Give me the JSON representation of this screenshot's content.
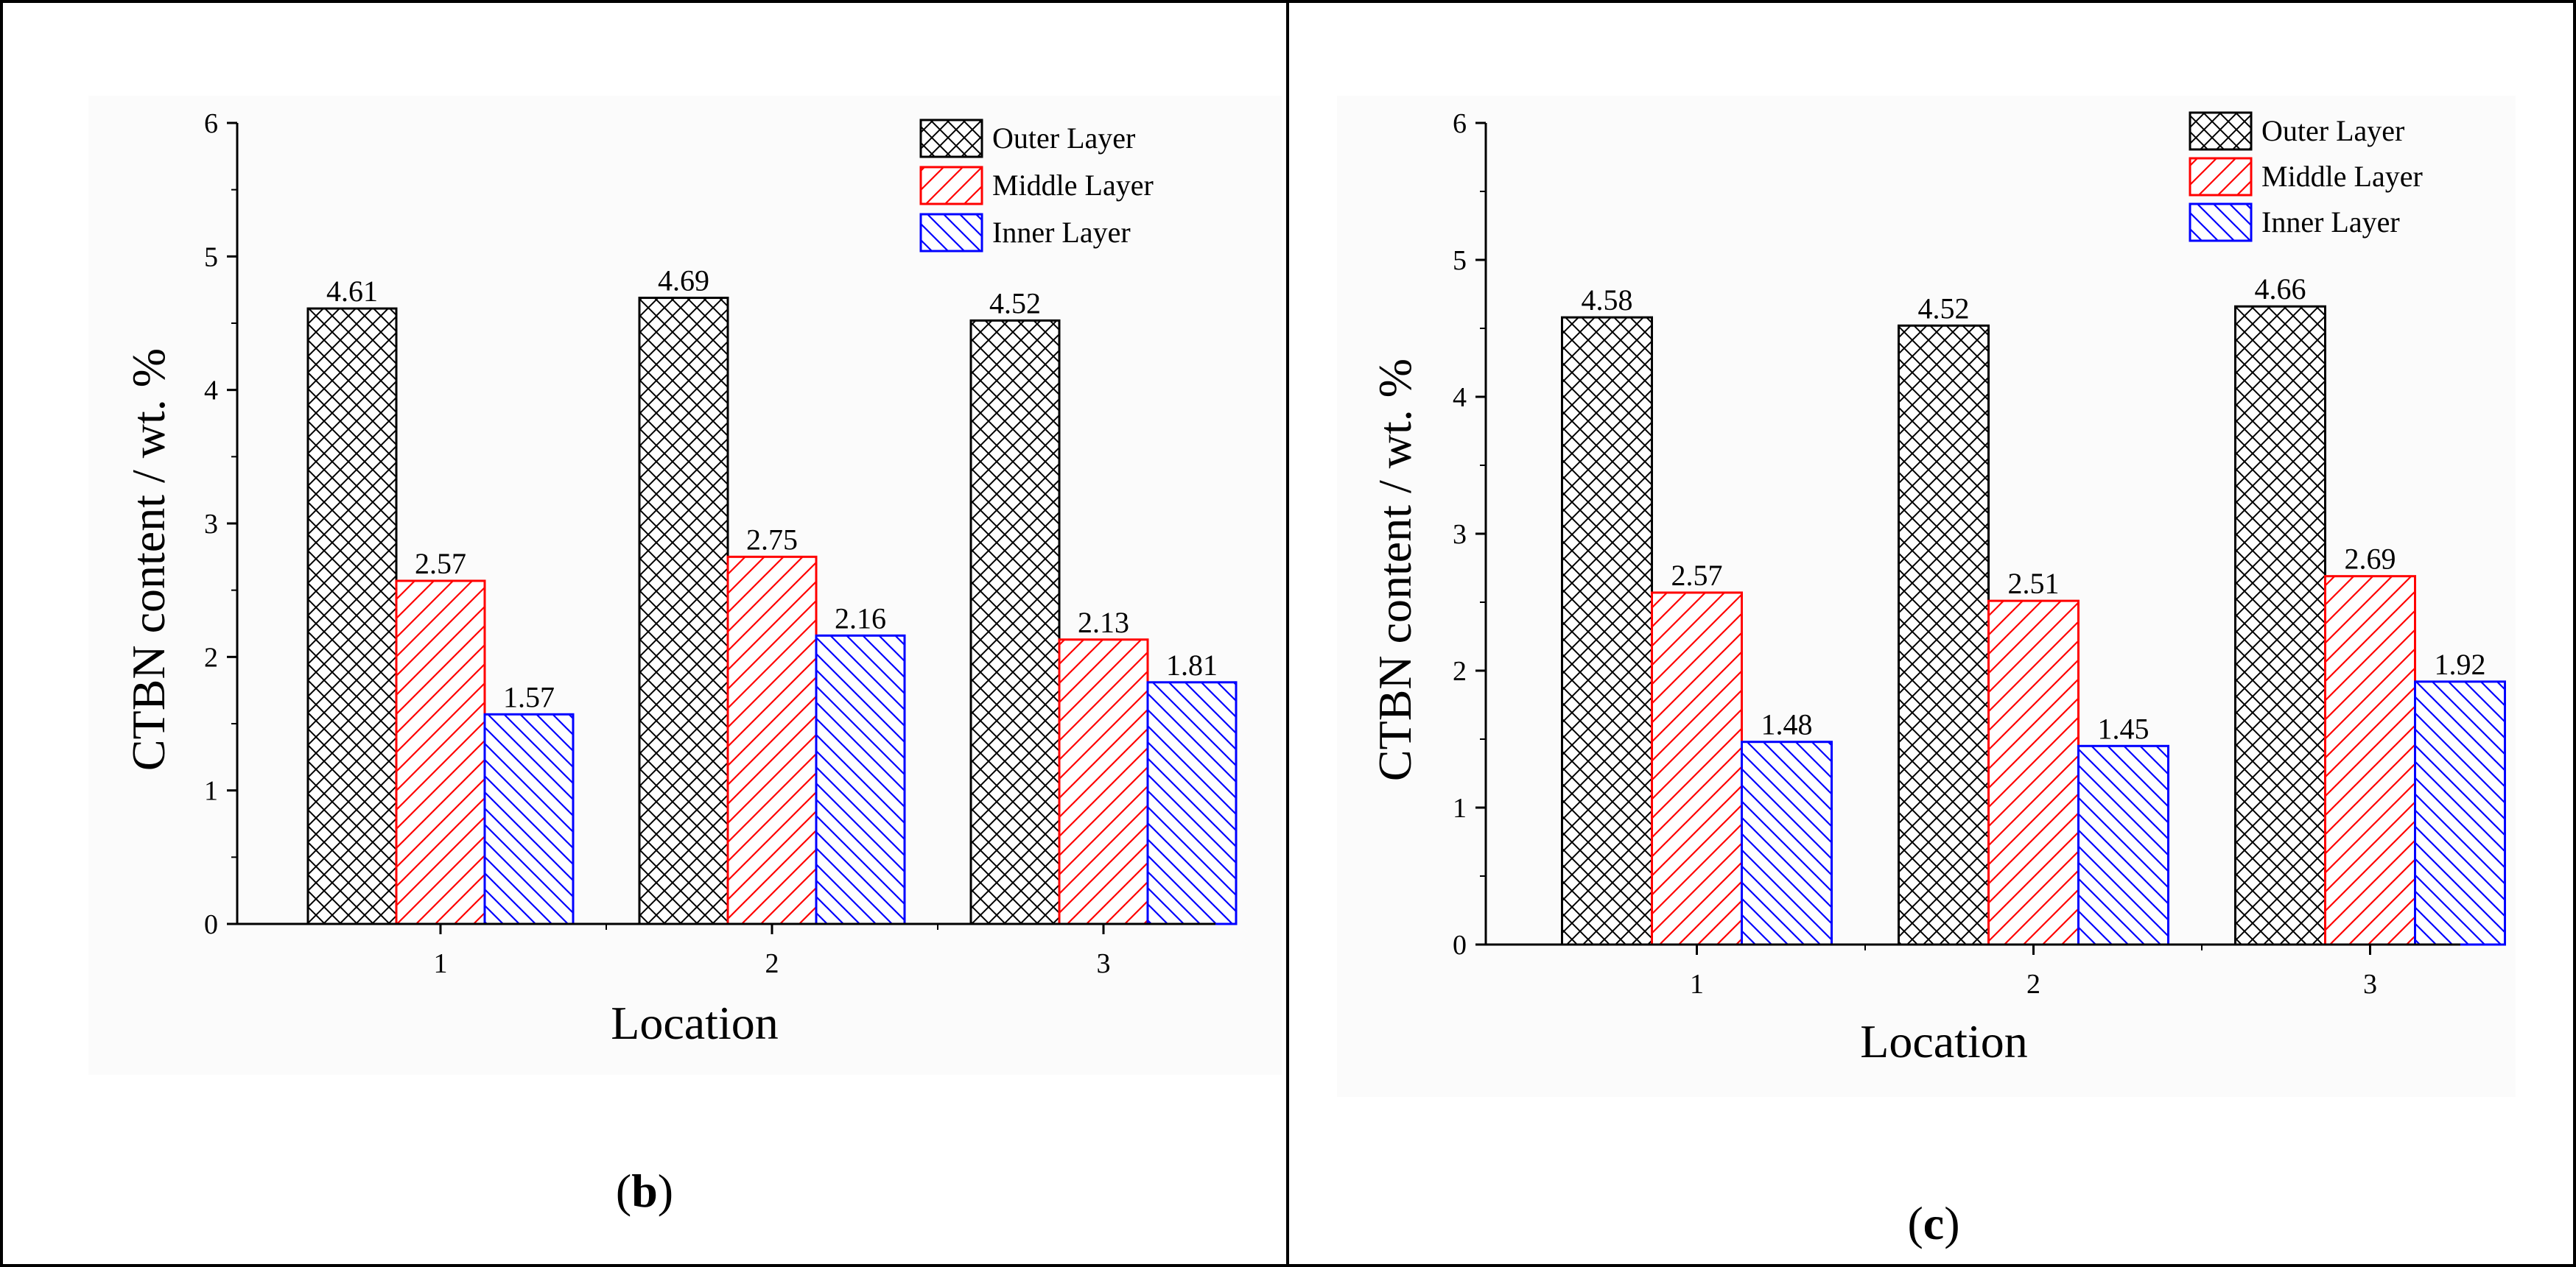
{
  "figure": {
    "panels": [
      {
        "label_open": "(",
        "label_letter": "b",
        "label_close": ")"
      },
      {
        "label_open": "(",
        "label_letter": "c",
        "label_close": ")"
      }
    ]
  },
  "colors": {
    "outer": "#000000",
    "middle": "#ff0000",
    "inner": "#0000ff",
    "plot_bg": "#fbfbfb"
  },
  "chart_data": [
    {
      "type": "bar",
      "title": "",
      "xlabel": "Location",
      "ylabel": "CTBN content / wt. %",
      "categories": [
        "1",
        "2",
        "3"
      ],
      "ylim": [
        0,
        6
      ],
      "yticks": [
        "0",
        "1",
        "2",
        "3",
        "4",
        "5",
        "6"
      ],
      "legend_position": "top-right",
      "series": [
        {
          "name": "Outer Layer",
          "pattern": "crosshatch",
          "values": [
            4.61,
            4.69,
            4.52
          ],
          "labels": [
            "4.61",
            "4.69",
            "4.52"
          ]
        },
        {
          "name": "Middle Layer",
          "pattern": "diagonal-up",
          "values": [
            2.57,
            2.75,
            2.13
          ],
          "labels": [
            "2.57",
            "2.75",
            "2.13"
          ]
        },
        {
          "name": "Inner Layer",
          "pattern": "diagonal-down",
          "values": [
            1.57,
            2.16,
            1.81
          ],
          "labels": [
            "1.57",
            "2.16",
            "1.81"
          ]
        }
      ]
    },
    {
      "type": "bar",
      "title": "",
      "xlabel": "Location",
      "ylabel": "CTBN content / wt. %",
      "categories": [
        "1",
        "2",
        "3"
      ],
      "ylim": [
        0,
        6
      ],
      "yticks": [
        "0",
        "1",
        "2",
        "3",
        "4",
        "5",
        "6"
      ],
      "legend_position": "top-right",
      "series": [
        {
          "name": "Outer Layer",
          "pattern": "crosshatch",
          "values": [
            4.58,
            4.52,
            4.66
          ],
          "labels": [
            "4.58",
            "4.52",
            "4.66"
          ]
        },
        {
          "name": "Middle Layer",
          "pattern": "diagonal-up",
          "values": [
            2.57,
            2.51,
            2.69
          ],
          "labels": [
            "2.57",
            "2.51",
            "2.69"
          ]
        },
        {
          "name": "Inner Layer",
          "pattern": "diagonal-down",
          "values": [
            1.48,
            1.45,
            1.92
          ],
          "labels": [
            "1.48",
            "1.45",
            "1.92"
          ]
        }
      ]
    }
  ]
}
